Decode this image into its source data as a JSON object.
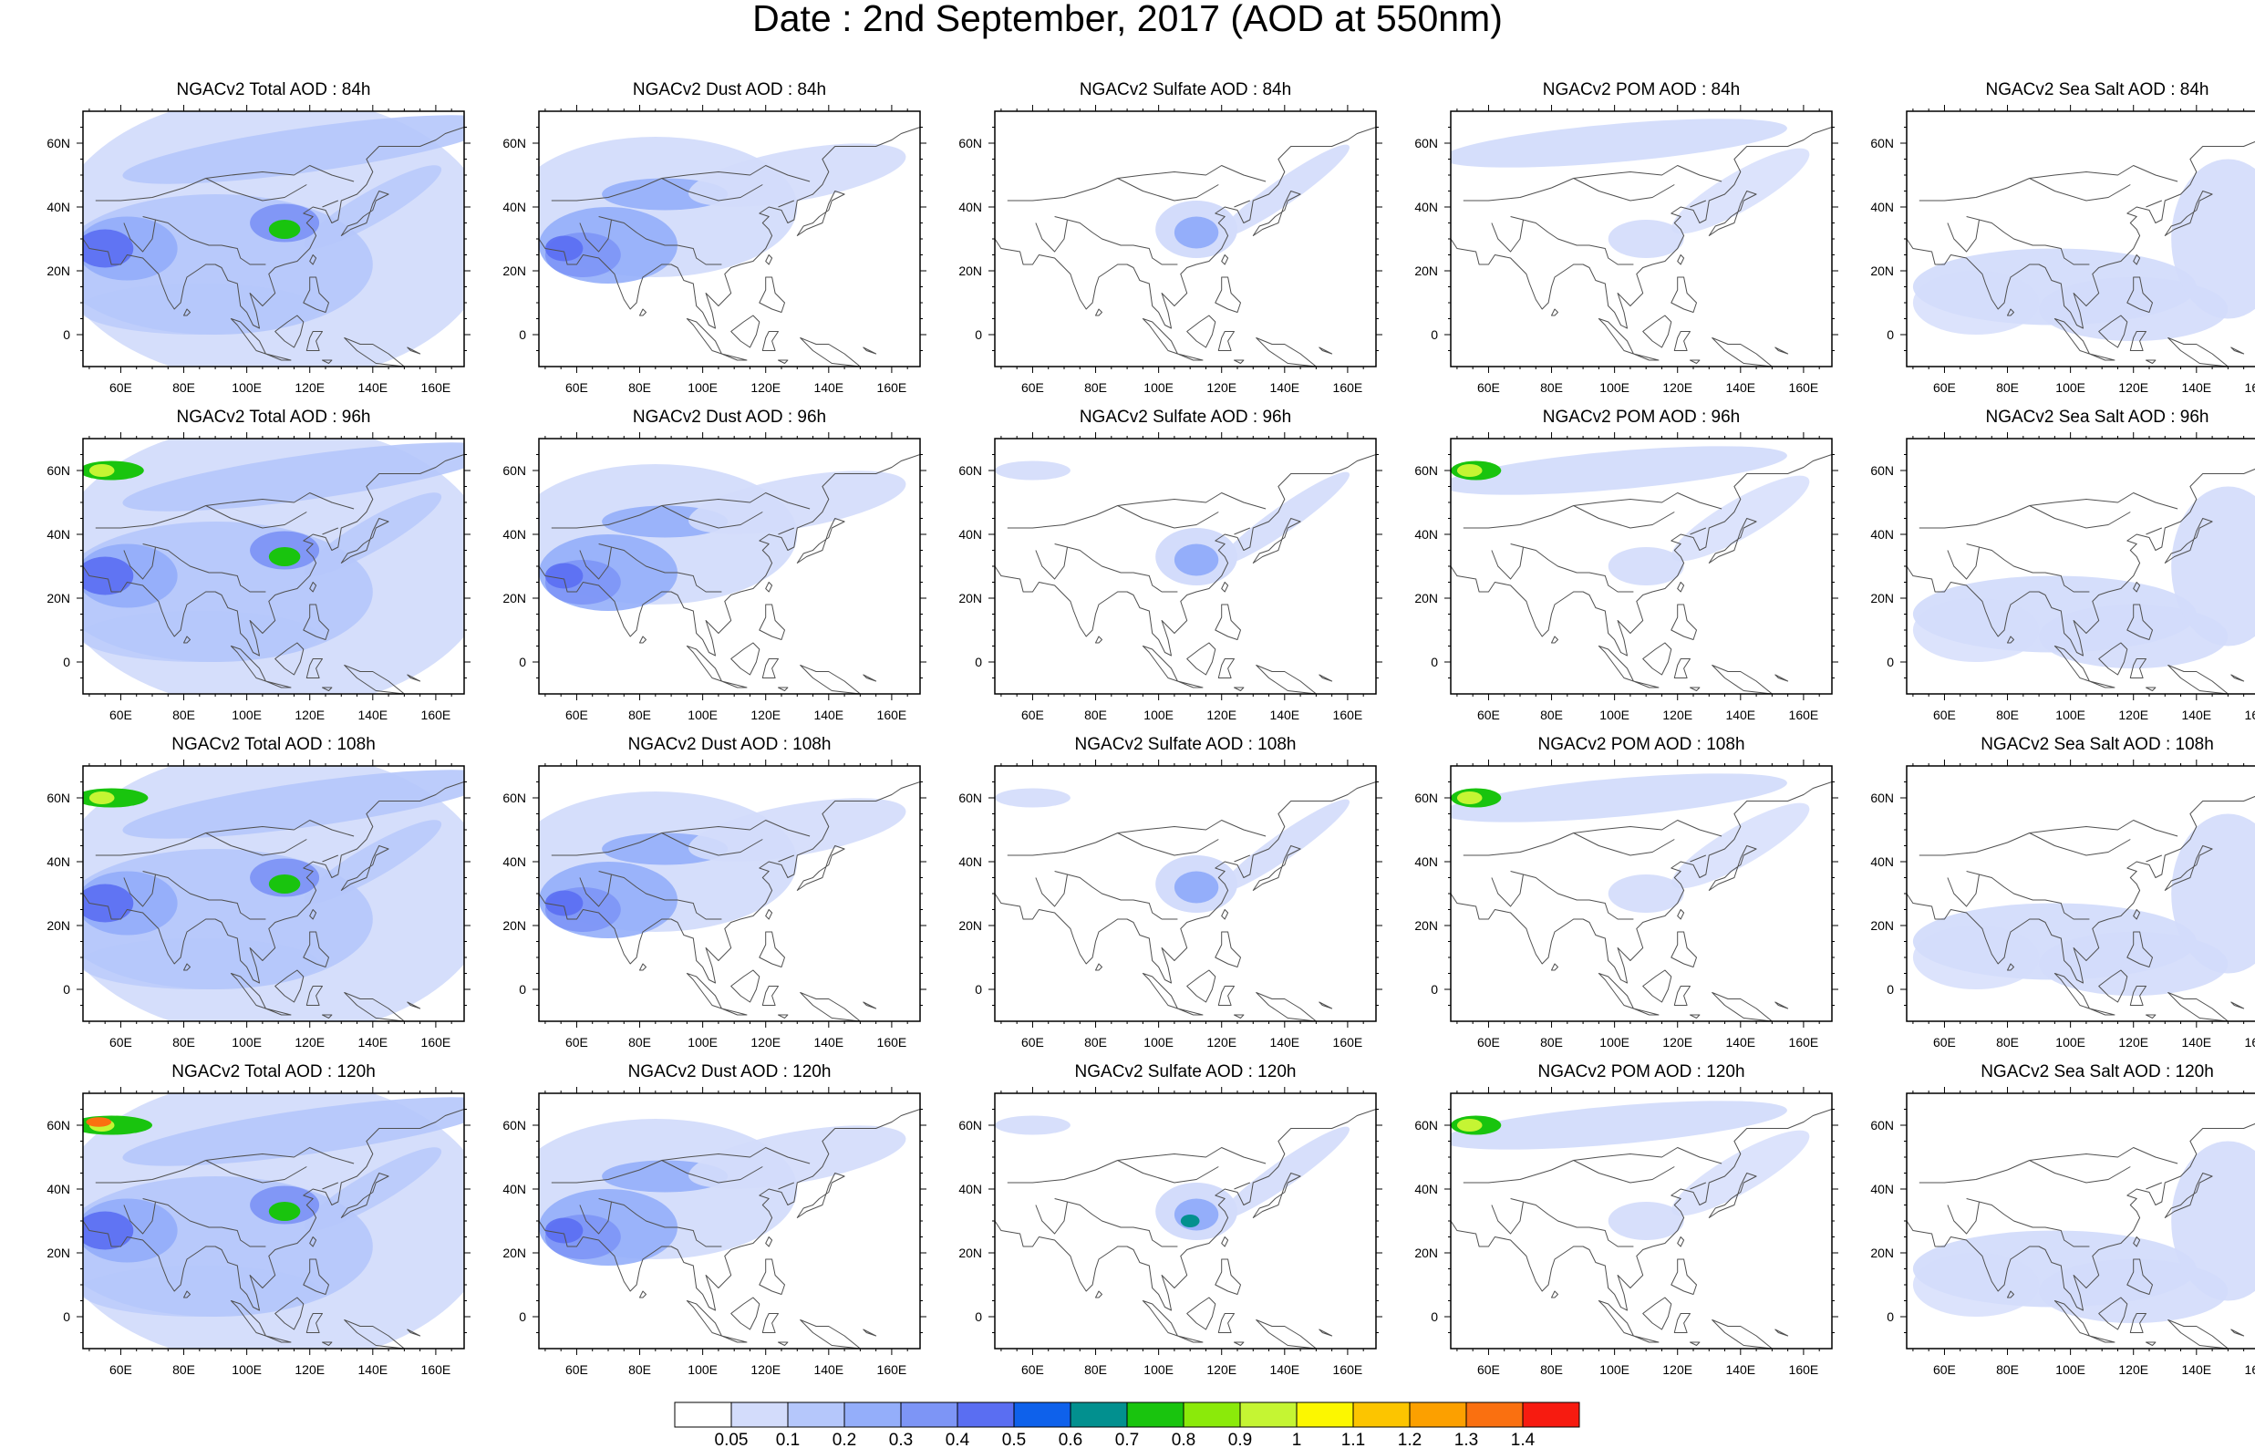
{
  "title": "Date : 2nd September, 2017 (AOD at 550nm)",
  "axes": {
    "lon_ticks": [
      "60E",
      "80E",
      "100E",
      "120E",
      "140E",
      "160E"
    ],
    "lon_values": [
      60,
      80,
      100,
      120,
      140,
      160
    ],
    "lat_ticks": [
      "60N",
      "40N",
      "20N",
      "0"
    ],
    "lat_values": [
      60,
      40,
      20,
      0
    ],
    "lon_range": [
      48,
      169
    ],
    "lat_range": [
      -10,
      70
    ]
  },
  "panels": [
    {
      "title": "NGACv2 Total AOD : 84h",
      "species": "total",
      "hour": 84
    },
    {
      "title": "NGACv2 Dust AOD : 84h",
      "species": "dust",
      "hour": 84
    },
    {
      "title": "NGACv2 Sulfate AOD : 84h",
      "species": "sulfate",
      "hour": 84
    },
    {
      "title": "NGACv2 POM AOD : 84h",
      "species": "pom",
      "hour": 84
    },
    {
      "title": "NGACv2 Sea Salt AOD : 84h",
      "species": "seasalt",
      "hour": 84
    },
    {
      "title": "NGACv2 Total AOD : 96h",
      "species": "total",
      "hour": 96
    },
    {
      "title": "NGACv2 Dust AOD : 96h",
      "species": "dust",
      "hour": 96
    },
    {
      "title": "NGACv2 Sulfate AOD : 96h",
      "species": "sulfate",
      "hour": 96
    },
    {
      "title": "NGACv2 POM AOD : 96h",
      "species": "pom",
      "hour": 96
    },
    {
      "title": "NGACv2 Sea Salt AOD : 96h",
      "species": "seasalt",
      "hour": 96
    },
    {
      "title": "NGACv2 Total AOD : 108h",
      "species": "total",
      "hour": 108
    },
    {
      "title": "NGACv2 Dust AOD : 108h",
      "species": "dust",
      "hour": 108
    },
    {
      "title": "NGACv2 Sulfate AOD : 108h",
      "species": "sulfate",
      "hour": 108
    },
    {
      "title": "NGACv2 POM AOD : 108h",
      "species": "pom",
      "hour": 108
    },
    {
      "title": "NGACv2 Sea Salt AOD : 108h",
      "species": "seasalt",
      "hour": 108
    },
    {
      "title": "NGACv2 Total AOD : 120h",
      "species": "total",
      "hour": 120
    },
    {
      "title": "NGACv2 Dust AOD : 120h",
      "species": "dust",
      "hour": 120
    },
    {
      "title": "NGACv2 Sulfate AOD : 120h",
      "species": "sulfate",
      "hour": 120
    },
    {
      "title": "NGACv2 POM AOD : 120h",
      "species": "pom",
      "hour": 120
    },
    {
      "title": "NGACv2 Sea Salt  AOD : 120h",
      "species": "seasalt",
      "hour": 120
    }
  ],
  "colorbar": {
    "labels": [
      "0.05",
      "0.1",
      "0.2",
      "0.3",
      "0.4",
      "0.5",
      "0.6",
      "0.7",
      "0.8",
      "0.9",
      "1",
      "1.1",
      "1.2",
      "1.3",
      "1.4"
    ],
    "colors": [
      "#ffffff",
      "#d3dcfb",
      "#b5c7fb",
      "#94aefa",
      "#7d95f6",
      "#5a6ef2",
      "#0e61eb",
      "#02908f",
      "#19c40e",
      "#8bea0a",
      "#c5f533",
      "#fcf700",
      "#fcc500",
      "#fca000",
      "#fa7010",
      "#f71b10"
    ]
  },
  "palette": {
    "coast": "#505050",
    "frame": "#000000"
  }
}
